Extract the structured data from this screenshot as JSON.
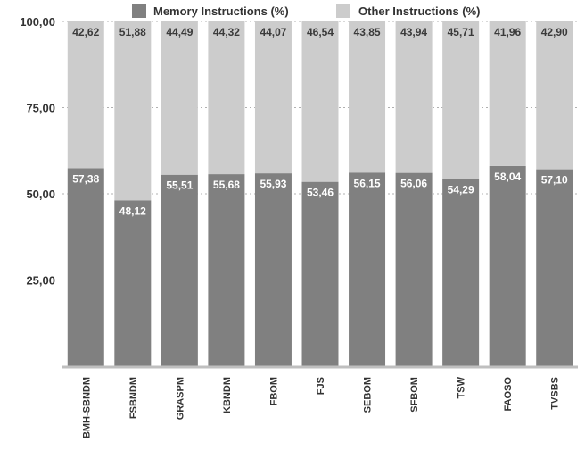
{
  "chart_data": {
    "type": "bar",
    "stacked": true,
    "categories": [
      "BMH-SBNDM",
      "FSBNDM",
      "GRASPM",
      "KBNDM",
      "FBOM",
      "FJS",
      "SEBOM",
      "SFBOM",
      "TSW",
      "FAOSO",
      "TVSBS"
    ],
    "series": [
      {
        "name": "Memory Instructions (%)",
        "color": "#808080",
        "values": [
          57.38,
          48.12,
          55.51,
          55.68,
          55.93,
          53.46,
          56.15,
          56.06,
          54.29,
          58.04,
          57.1
        ],
        "labels": [
          "57,38",
          "48,12",
          "55,51",
          "55,68",
          "55,93",
          "53,46",
          "56,15",
          "56,06",
          "54,29",
          "58,04",
          "57,10"
        ]
      },
      {
        "name": "Other Instructions (%)",
        "color": "#cccccc",
        "values": [
          42.62,
          51.88,
          44.49,
          44.32,
          44.07,
          46.54,
          43.85,
          43.94,
          45.71,
          41.96,
          42.9
        ],
        "labels": [
          "42,62",
          "51,88",
          "44,49",
          "44,32",
          "44,07",
          "46,54",
          "43,85",
          "43,94",
          "45,71",
          "41,96",
          "42,90"
        ]
      }
    ],
    "ylim": [
      0,
      100
    ],
    "yticks": [
      25,
      50,
      75,
      100
    ],
    "ytick_labels": [
      "25,00",
      "50,00",
      "75,00",
      "100,00"
    ],
    "grid": true,
    "legend_position": "top"
  }
}
